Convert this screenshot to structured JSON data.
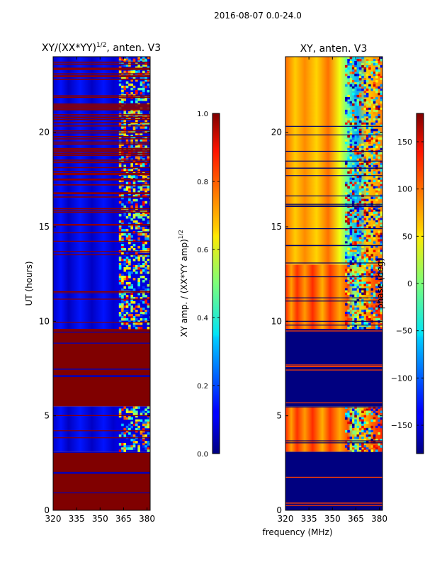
{
  "chart_data": {
    "suptitle": "2016-08-07 0.0-24.0",
    "shared_xlabel": "frequency (MHz)",
    "panels": [
      {
        "type": "heatmap",
        "title": "XY/(XX*YY)",
        "title_exponent": "1/2",
        "title_suffix": ", anten. V3",
        "xlabel": "",
        "ylabel": "UT (hours)",
        "xlim": [
          320,
          382
        ],
        "ylim": [
          0,
          24
        ],
        "xticks": [
          320,
          335,
          350,
          365,
          380
        ],
        "yticks": [
          0,
          5,
          10,
          15,
          20
        ],
        "colormap": "jet",
        "grid": false,
        "colorbar": {
          "label": "XY amp. / (XX*YY amp)",
          "label_exponent": "1/2",
          "range": [
            0.0,
            1.0
          ],
          "ticks": [
            0.0,
            0.2,
            0.4,
            0.6,
            0.8,
            1.0
          ],
          "tick_labels": [
            "0.0",
            "0.2",
            "0.4",
            "0.6",
            "0.8",
            "1.0"
          ]
        },
        "time_bands": [
          {
            "t_start": 0.0,
            "t_end": 3.1,
            "description": "flagged / saturated (high)",
            "value": 1.0
          },
          {
            "t_start": 3.1,
            "t_end": 5.5,
            "description": "low amplitude, bright near 365-380 MHz",
            "value": 0.1
          },
          {
            "t_start": 5.5,
            "t_end": 9.6,
            "description": "flagged / saturated (high)",
            "value": 1.0
          },
          {
            "t_start": 9.6,
            "t_end": 15.0,
            "description": "low amplitude, variable near 362-380 MHz",
            "value": 0.1
          },
          {
            "t_start": 15.0,
            "t_end": 23.6,
            "description": "low amplitude with many high-value rows",
            "value": 0.1
          },
          {
            "t_start": 23.6,
            "t_end": 24.0,
            "description": "low amplitude",
            "value": 0.1
          }
        ]
      },
      {
        "type": "heatmap",
        "title": "XY, anten. V3",
        "xlabel": "frequency (MHz)",
        "ylabel": "",
        "xlim": [
          320,
          382
        ],
        "ylim": [
          0,
          24
        ],
        "xticks": [
          320,
          335,
          350,
          365,
          380
        ],
        "yticks": [
          0,
          5,
          10,
          15,
          20
        ],
        "colormap": "jet",
        "grid": false,
        "colorbar": {
          "label": "phase (deg)",
          "range": [
            -180,
            180
          ],
          "ticks": [
            -150,
            -100,
            -50,
            0,
            50,
            100,
            150
          ],
          "tick_labels": [
            "−150",
            "−100",
            "−50",
            "0",
            "50",
            "100",
            "150"
          ]
        },
        "time_bands": [
          {
            "t_start": 0.0,
            "t_end": 3.1,
            "description": "phase near -180",
            "value": -180
          },
          {
            "t_start": 3.1,
            "t_end": 5.5,
            "description": "phase near +100..+150, varying above 360 MHz",
            "value": 120
          },
          {
            "t_start": 5.5,
            "t_end": 9.6,
            "description": "phase near -180",
            "value": -180
          },
          {
            "t_start": 9.6,
            "t_end": 13.0,
            "description": "phase near +100..+150, varying above 360 MHz",
            "value": 120
          },
          {
            "t_start": 13.0,
            "t_end": 24.0,
            "description": "mixed phase, mostly positive with low-phase rows",
            "value": 60
          }
        ]
      }
    ]
  },
  "colors": {
    "jet_low": "#00007f",
    "jet_high": "#7f0000",
    "background": "#ffffff"
  }
}
